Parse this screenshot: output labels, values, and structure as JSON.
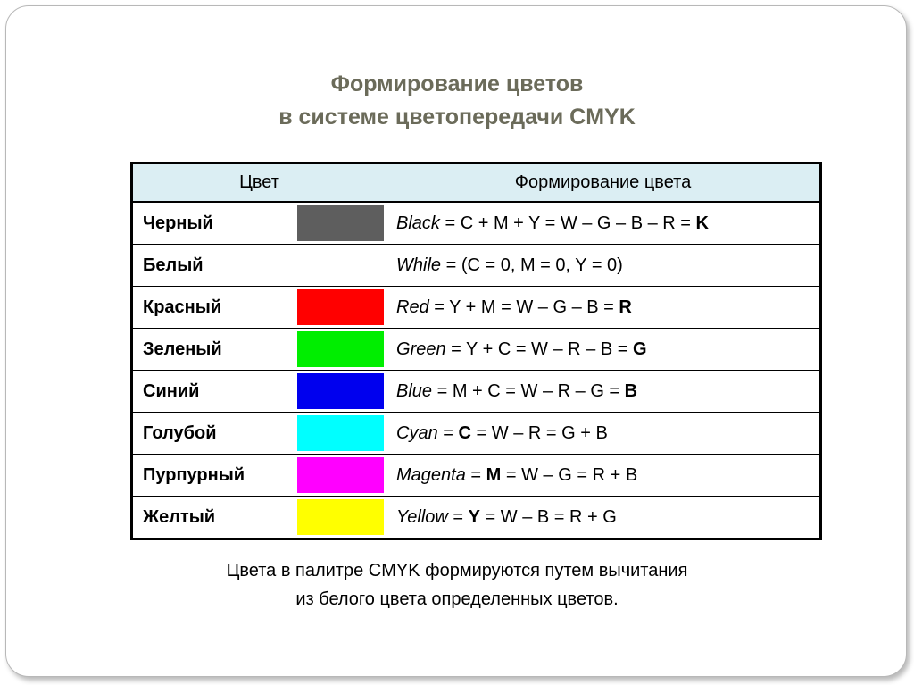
{
  "title": {
    "line1": "Формирование цветов",
    "line2": "в системе цветопередачи CMYK"
  },
  "table": {
    "headers": {
      "color": "Цвет",
      "formation": "Формирование цвета"
    },
    "rows": [
      {
        "name": "Черный",
        "swatch": "#5e5e5e",
        "formula_name": "Black",
        "formula_body": " = C + M + Y = W – G – B – R = ",
        "result": "K",
        "tail": ""
      },
      {
        "name": "Белый",
        "swatch": "#ffffff",
        "formula_name": "While",
        "formula_body": " = (C = 0, M = 0, Y = 0)",
        "result": "",
        "tail": ""
      },
      {
        "name": "Красный",
        "swatch": "#ff0000",
        "formula_name": "Red",
        "formula_body": " = Y + M = W – G – B = ",
        "result": "R",
        "tail": ""
      },
      {
        "name": "Зеленый",
        "swatch": "#00ee00",
        "formula_name": "Green",
        "formula_body": " = Y + C = W – R – B = ",
        "result": "G",
        "tail": ""
      },
      {
        "name": "Синий",
        "swatch": "#0000ee",
        "formula_name": "Blue",
        "formula_body": " = M + C = W – R – G = ",
        "result": "B",
        "tail": ""
      },
      {
        "name": "Голубой",
        "swatch": "#00ffff",
        "formula_name": "Cyan",
        "formula_body": " = ",
        "result": "C",
        "tail": " = W – R = G + B"
      },
      {
        "name": "Пурпурный",
        "swatch": "#ff00ff",
        "formula_name": "Magenta",
        "formula_body": " = ",
        "result": "M",
        "tail": " = W – G = R + B"
      },
      {
        "name": "Желтый",
        "swatch": "#ffff00",
        "formula_name": "Yellow",
        "formula_body": " = ",
        "result": "Y",
        "tail": " = W – B = R + G"
      }
    ]
  },
  "footnote": {
    "line1": "Цвета в палитре CMYK формируются путем вычитания",
    "line2": "из белого цвета определенных цветов."
  }
}
